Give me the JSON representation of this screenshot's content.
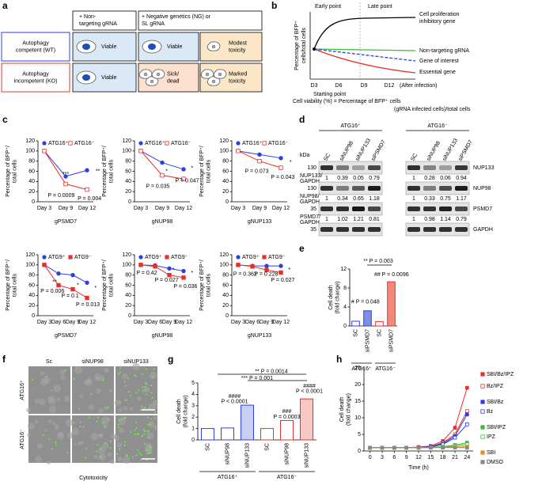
{
  "panel_labels": [
    "a",
    "b",
    "c",
    "d",
    "e",
    "f",
    "g",
    "h"
  ],
  "panel_a": {
    "col_headers": [
      [
        "+ Non-",
        "targeting gRNA"
      ],
      [
        "+ Negative genetics (NG) or",
        "SL gRNA"
      ]
    ],
    "row_headers": [
      [
        "Autophagy",
        "competent (WT)"
      ],
      [
        "Autophagy",
        "incompetent (KO)"
      ]
    ],
    "cells": [
      [
        [
          "Viable"
        ],
        [
          "Viable"
        ],
        [
          "Modest",
          "toxicity"
        ]
      ],
      [
        [
          "Viable"
        ],
        [
          "Sick/",
          "dead"
        ],
        [
          "Marked",
          "toxicity"
        ]
      ]
    ]
  },
  "panel_b": {
    "top_labels": [
      "Early point",
      "Late point"
    ],
    "ylabel": [
      "Percentage of BFP⁺",
      "cells/total cells"
    ],
    "xticks": [
      "D3",
      "D6",
      "D9",
      "D12"
    ],
    "xnote": "(After infection)",
    "start": "Starting point",
    "curves": [
      [
        "Cell proliferation",
        "inhibitory gene"
      ],
      [
        "Non-targeting gRNA"
      ],
      [
        "Gene of interest"
      ],
      [
        "Essential gene"
      ]
    ],
    "formula": [
      "Cell viability (%) = Percentage of BFP⁺ cells",
      "(gRNA infected cells)/total cells"
    ]
  },
  "panel_d": {
    "groups": [
      "ATG16⁺",
      "ATG16⁻"
    ],
    "lanes": [
      [
        "SC",
        "siNUP98",
        "siNUP133",
        "siPSMD7"
      ],
      [
        "SC",
        "siNUP98",
        "siNUP133",
        "siPSMD7"
      ]
    ],
    "kda": "kDa",
    "rows": [
      {
        "marker": 130,
        "protein": "NUP133",
        "ratio_label": [
          "NUP133/",
          "GAPDH"
        ],
        "ratios": [
          [
            1,
            0.39,
            0.05,
            0.79
          ],
          [
            1,
            0.28,
            0.06,
            0.94
          ]
        ]
      },
      {
        "marker": 130,
        "protein": "NUP98",
        "ratio_label": [
          "NUP98/",
          "GAPDH"
        ],
        "ratios": [
          [
            1,
            0.34,
            0.65,
            1.18
          ],
          [
            1,
            0.33,
            0.75,
            1.17
          ]
        ]
      },
      {
        "marker": 35,
        "protein": "PSMD7",
        "ratio_label": [
          "PSMD7/",
          "GAPDH"
        ],
        "ratios": [
          [
            1,
            1.02,
            1.21,
            0.81
          ],
          [
            1,
            0.98,
            1.14,
            0.79
          ]
        ]
      },
      {
        "marker": 35,
        "protein": "GAPDH"
      }
    ]
  },
  "panel_f": {
    "cols": [
      "Sc",
      "siNUP98",
      "siNUP133"
    ],
    "rows": [
      "ATG16⁺",
      "ATG16⁻"
    ],
    "caption": "Cytotoxicity"
  },
  "chart_data": [
    {
      "type": "line",
      "categories": [
        "Day 3",
        "Day 9",
        "Day 12"
      ],
      "xlabel": "gPSMD7",
      "ylabel": [
        "Percentage of BFP⁺/",
        "total cells"
      ],
      "ylim": [
        0,
        120
      ],
      "yticks": [
        0,
        20,
        40,
        60,
        80,
        100,
        120
      ],
      "series": [
        {
          "name": "ATG16⁺",
          "color": "#2e3fe0",
          "marker": "circle",
          "values": [
            100,
            50,
            62
          ]
        },
        {
          "name": "ATG16⁻",
          "color": "#e8302a",
          "marker": "square-open",
          "values": [
            100,
            35,
            24
          ]
        }
      ],
      "annotations": [
        "***",
        "P = 0.0009",
        "**",
        "P = 0.004"
      ]
    },
    {
      "type": "line",
      "categories": [
        "Day 3",
        "Day 9",
        "Day 12"
      ],
      "xlabel": "gNUP98",
      "ylabel": [
        "Percentage of BFP⁺/",
        "total cells"
      ],
      "ylim": [
        0,
        120
      ],
      "yticks": [
        0,
        20,
        40,
        60,
        80,
        100,
        120
      ],
      "series": [
        {
          "name": "ATG16⁺",
          "color": "#2e3fe0",
          "marker": "circle",
          "values": [
            100,
            77,
            64
          ]
        },
        {
          "name": "ATG16⁻",
          "color": "#e8302a",
          "marker": "square-open",
          "values": [
            100,
            52,
            45
          ]
        }
      ],
      "annotations": [
        "*",
        "P = 0.035",
        "*",
        "P = 0.047"
      ]
    },
    {
      "type": "line",
      "categories": [
        "Day 3",
        "Day 9",
        "Day 12"
      ],
      "xlabel": "gNUP133",
      "ylabel": [
        "Percentage of BFP⁺/",
        "total cells"
      ],
      "ylim": [
        0,
        120
      ],
      "yticks": [
        0,
        20,
        40,
        60,
        80,
        100,
        120
      ],
      "series": [
        {
          "name": "ATG16⁺",
          "color": "#2e3fe0",
          "marker": "circle",
          "values": [
            100,
            93,
            86
          ]
        },
        {
          "name": "ATG16⁻",
          "color": "#e8302a",
          "marker": "square-open",
          "values": [
            100,
            80,
            67
          ]
        }
      ],
      "annotations": [
        "P = 0.073",
        "*",
        "P = 0.043"
      ]
    },
    {
      "type": "line",
      "categories": [
        "Day 3",
        "Day 6",
        "Day 9",
        "Day 12"
      ],
      "xlabel": "gPSMD7",
      "ylabel": [
        "Percentage of BFP⁺/",
        "total cells"
      ],
      "ylim": [
        0,
        120
      ],
      "yticks": [
        0,
        20,
        40,
        60,
        80,
        100,
        120
      ],
      "series": [
        {
          "name": "ATG9⁺",
          "color": "#2e3fe0",
          "marker": "circle",
          "values": [
            100,
            83,
            80,
            65
          ]
        },
        {
          "name": "ATG9⁻",
          "color": "#e8302a",
          "marker": "square",
          "values": [
            100,
            60,
            52,
            35
          ]
        }
      ],
      "annotations": [
        "**",
        "P = 0.006",
        "*",
        "P = 0.1",
        "*",
        "P = 0.013"
      ]
    },
    {
      "type": "line",
      "categories": [
        "Day 3",
        "Day 6",
        "Day 9",
        "Day 12"
      ],
      "xlabel": "gNUP98",
      "ylabel": [
        "Percentage of BFP⁺/",
        "total cells"
      ],
      "ylim": [
        0,
        120
      ],
      "yticks": [
        0,
        20,
        40,
        60,
        80,
        100,
        120
      ],
      "series": [
        {
          "name": "ATG9⁺",
          "color": "#2e3fe0",
          "marker": "circle",
          "values": [
            100,
            99,
            93,
            88
          ]
        },
        {
          "name": "ATG9⁻",
          "color": "#e8302a",
          "marker": "square",
          "values": [
            100,
            97,
            80,
            75
          ]
        }
      ],
      "annotations": [
        "P = 0.42",
        "*",
        "P = 0.027",
        "*",
        "P = 0.036"
      ]
    },
    {
      "type": "line",
      "categories": [
        "Day 3",
        "Day 6",
        "Day 9",
        "Day 12"
      ],
      "xlabel": "gNUP133",
      "ylabel": [
        "Percentage of BFP⁺/",
        "total cells"
      ],
      "ylim": [
        0,
        120
      ],
      "yticks": [
        0,
        20,
        40,
        60,
        80,
        100,
        120
      ],
      "series": [
        {
          "name": "ATG9⁺",
          "color": "#2e3fe0",
          "marker": "circle",
          "values": [
            100,
            98,
            98,
            98
          ]
        },
        {
          "name": "ATG9⁻",
          "color": "#e8302a",
          "marker": "square",
          "values": [
            100,
            97,
            90,
            85
          ]
        }
      ],
      "annotations": [
        "P = 0.362",
        "P = 0.228",
        "*",
        "P = 0.027"
      ]
    },
    {
      "type": "bar",
      "categories": [
        "SC",
        "siPSMD7",
        "SC",
        "siPSMD7"
      ],
      "values": [
        1,
        3.2,
        0.9,
        9.3
      ],
      "colors": [
        "#ffffff",
        "#7f8fe8",
        "#ffffff",
        "#f08a7a"
      ],
      "edgecolors": [
        "#2e3fe0",
        "#2e3fe0",
        "#e8302a",
        "#e8302a"
      ],
      "groups": [
        "ATG16⁺",
        "ATG16⁻"
      ],
      "ylabel": [
        "Cell death",
        "(fold change)"
      ],
      "ylim": [
        0,
        12
      ],
      "yticks": [
        0,
        4,
        8,
        12
      ],
      "annotations": [
        "** P = 0.003",
        "# P = 0.048",
        "## P = 0.0096"
      ]
    },
    {
      "type": "bar",
      "categories": [
        "SC",
        "siNUP98",
        "siNUP133",
        "SC",
        "siNUP98",
        "siNUP133"
      ],
      "values": [
        1,
        1.05,
        3.05,
        1,
        1.7,
        3.6
      ],
      "colors": [
        "#ffffff",
        "#ffffff",
        "#c9cff5",
        "#ffffff",
        "#ffffff",
        "#f7c9c2"
      ],
      "edgecolors": [
        "#2e3fe0",
        "#2e3fe0",
        "#2e3fe0",
        "#e8302a",
        "#e8302a",
        "#e8302a"
      ],
      "groups": [
        "ATG16⁺",
        "ATG16⁻"
      ],
      "ylabel": [
        "Cell death",
        "(fold change)"
      ],
      "ylim": [
        0,
        5
      ],
      "yticks": [
        0,
        1,
        2,
        3,
        4,
        5
      ],
      "annotations": [
        "** P = 0.0014",
        "*** P = 0.001",
        "####",
        "P < 0.0001",
        "###",
        "P = 0.0003",
        "####",
        "P < 0.0001"
      ]
    },
    {
      "type": "line",
      "x": [
        0,
        3,
        6,
        9,
        12,
        15,
        18,
        21,
        24
      ],
      "xlim": [
        -1.5,
        25.5
      ],
      "xticks": [
        0,
        3,
        6,
        9,
        12,
        15,
        18,
        21,
        24
      ],
      "xlabel": "Time (h)",
      "ylabel": [
        "Cell death",
        "(fold change)"
      ],
      "ylim": [
        0,
        25
      ],
      "yticks": [
        0,
        5,
        10,
        15,
        20,
        25
      ],
      "series": [
        {
          "name": "SBI/Bz/IPZ",
          "color": "#e8302a",
          "marker": "square",
          "values": [
            1,
            1,
            1,
            1,
            1.2,
            1.5,
            3,
            7,
            19
          ]
        },
        {
          "name": "Bz/IPZ",
          "color": "#e8302a",
          "marker": "square-open",
          "values": [
            1,
            1,
            1,
            1,
            1.1,
            1.3,
            2.5,
            5,
            12
          ]
        },
        {
          "name": "SBI/Bz",
          "color": "#2e3fe0",
          "marker": "square",
          "values": [
            1,
            1,
            1,
            1,
            1.1,
            1.3,
            2.2,
            4.5,
            11
          ]
        },
        {
          "name": "Bz",
          "color": "#2e3fe0",
          "marker": "square-open",
          "values": [
            1,
            1,
            1,
            1,
            1,
            1.2,
            2,
            4,
            8
          ]
        },
        {
          "name": "SBI/IPZ",
          "color": "#3cb93c",
          "marker": "square",
          "values": [
            1,
            1,
            1,
            1,
            1,
            1.1,
            1.3,
            1.8,
            2.5
          ]
        },
        {
          "name": "IPZ",
          "color": "#3cb93c",
          "marker": "square-open",
          "values": [
            1,
            1,
            1,
            1,
            1,
            1,
            1.2,
            1.5,
            2
          ]
        },
        {
          "name": "SBI",
          "color": "#f08c1e",
          "marker": "square",
          "values": [
            1,
            1,
            1,
            1,
            1,
            1,
            1.1,
            1.2,
            1.3
          ]
        },
        {
          "name": "DMSO",
          "color": "#888888",
          "marker": "square",
          "values": [
            1,
            1,
            1,
            1,
            1,
            1,
            1,
            1,
            1
          ]
        }
      ]
    }
  ]
}
